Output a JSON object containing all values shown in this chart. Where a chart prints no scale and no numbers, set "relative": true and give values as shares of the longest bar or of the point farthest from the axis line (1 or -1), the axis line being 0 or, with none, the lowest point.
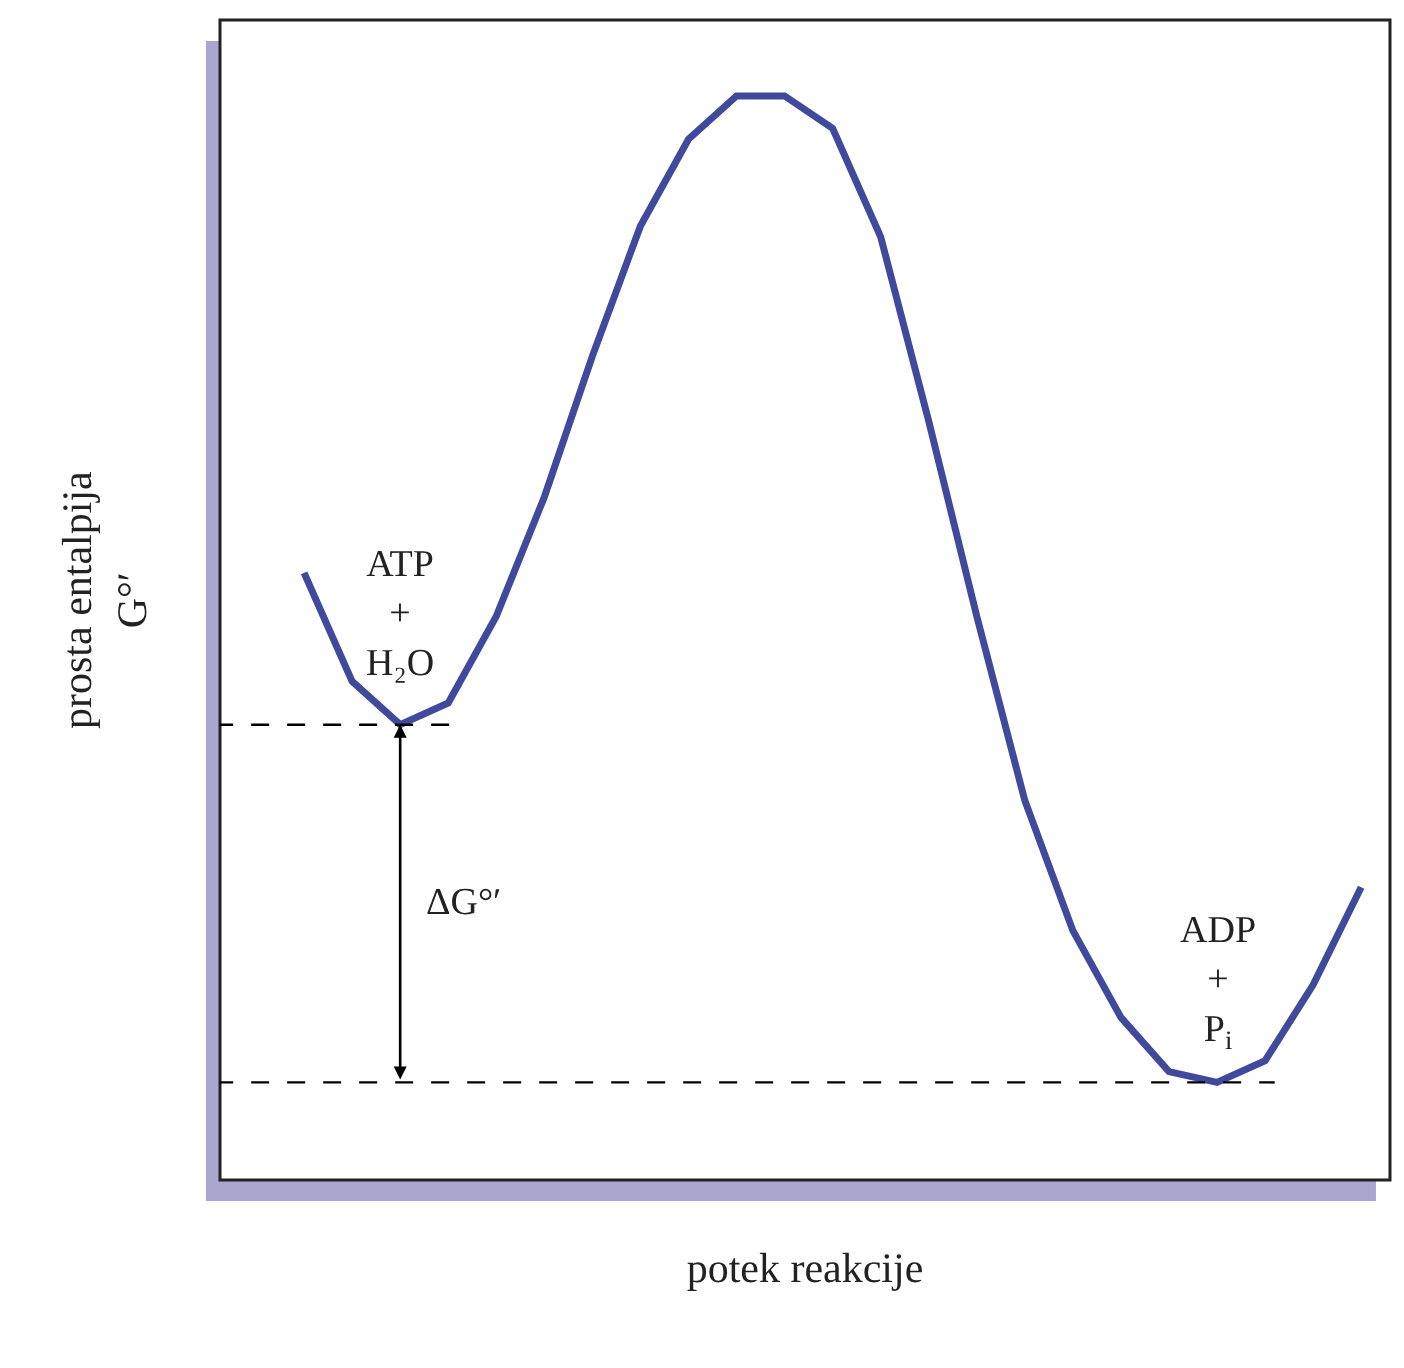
{
  "chart_data": {
    "type": "line",
    "relative": true,
    "xlabel": "potek reakcije",
    "ylabel": "prosta entalpija\nG°′",
    "categories": [
      null,
      null,
      null,
      null,
      null,
      null,
      null,
      null,
      null,
      null,
      null,
      null,
      null,
      null,
      null,
      null,
      null,
      null,
      null,
      null,
      null,
      null,
      null
    ],
    "series": [
      {
        "color": "#3f4a9c",
        "values": [
          0.56,
          0.46,
          0.42,
          0.44,
          0.52,
          0.63,
          0.76,
          0.88,
          0.96,
          1.0,
          1.0,
          0.97,
          0.87,
          0.7,
          0.52,
          0.35,
          0.23,
          0.15,
          0.1,
          0.09,
          0.11,
          0.18,
          0.27
        ]
      }
    ],
    "ref_lines": [
      {
        "axis": "y",
        "value": 0.42,
        "line_style": "dashed",
        "color": "#000000"
      },
      {
        "axis": "y",
        "value": 0.09,
        "line_style": "dashed",
        "color": "#000000"
      }
    ],
    "annotations": [
      "ATP\n+\nH₂O",
      "ADP\n+\nP$_{i}$",
      "ΔG°′"
    ],
    "marker": "none",
    "line_style": "solid"
  }
}
